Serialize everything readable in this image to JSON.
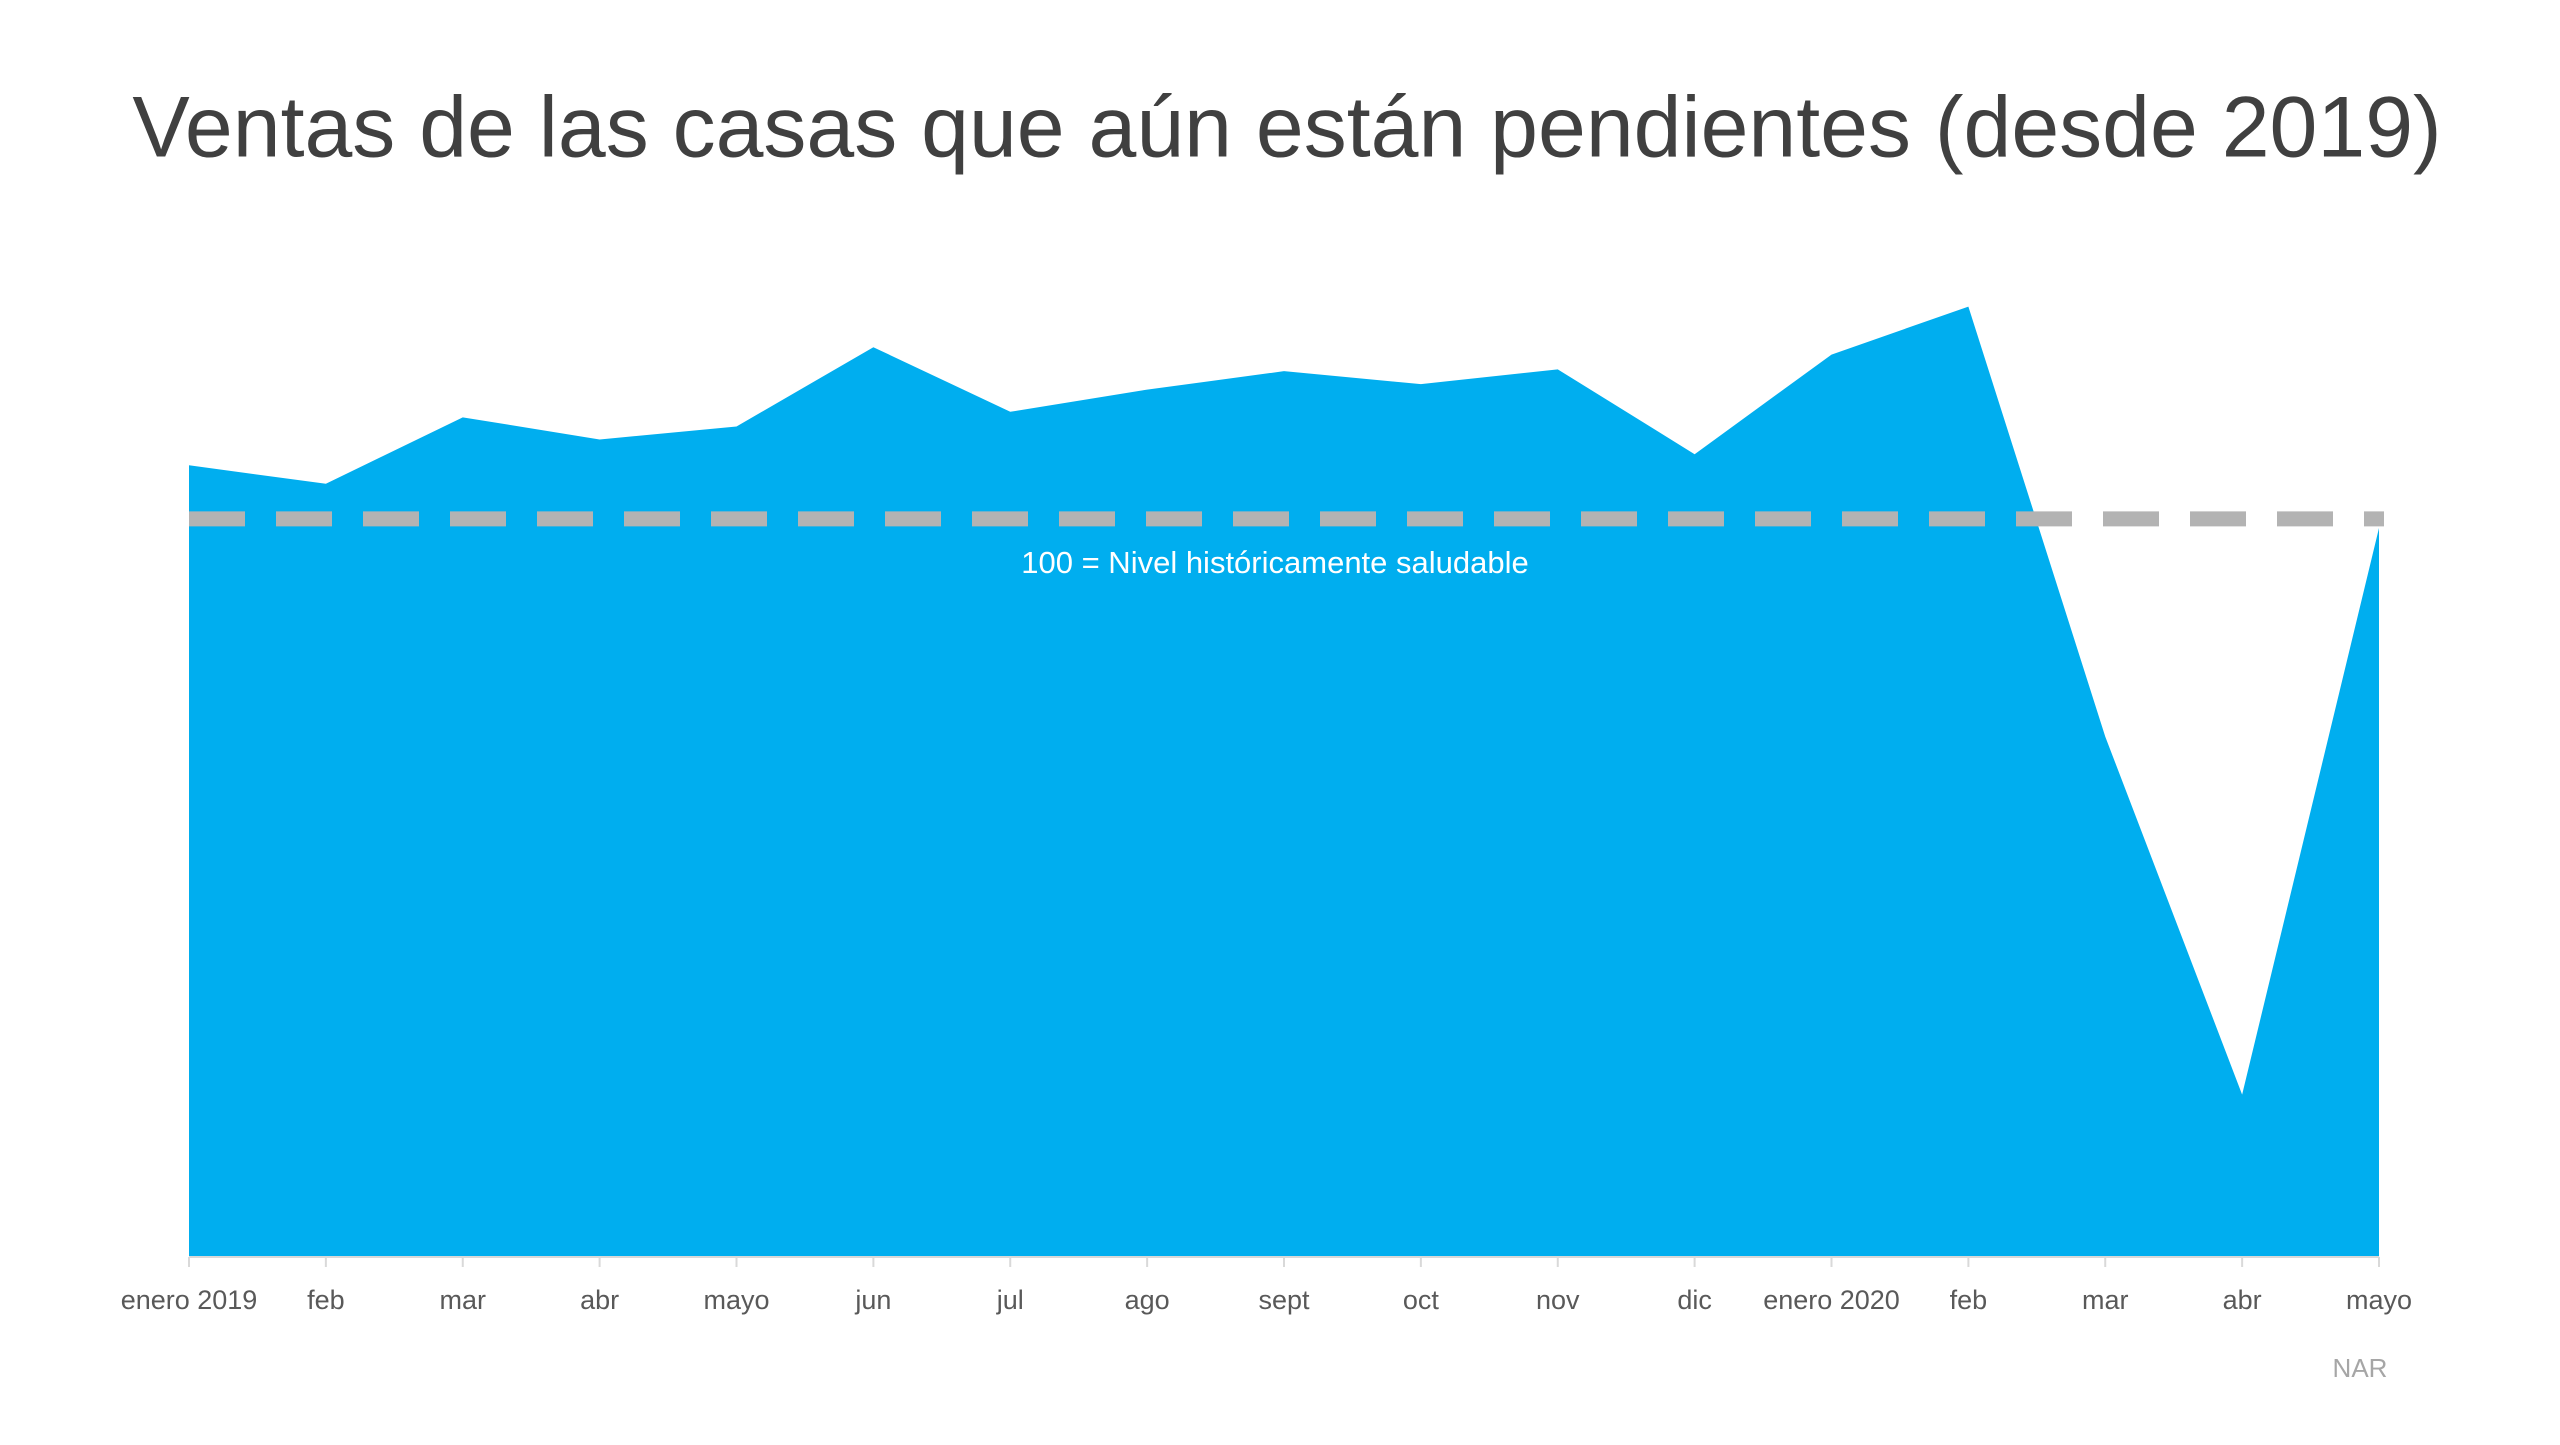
{
  "chart_data": {
    "type": "area",
    "title": "Ventas de las casas que aún están pendientes (desde 2019)",
    "categories": [
      "enero 2019",
      "feb",
      "mar",
      "abr",
      "mayo",
      "jun",
      "jul",
      "ago",
      "sept",
      "oct",
      "nov",
      "dic",
      "enero 2020",
      "feb",
      "mar",
      "abr",
      "mayo"
    ],
    "values": [
      102.9,
      101.9,
      105.5,
      104.3,
      105.0,
      109.3,
      105.8,
      107.0,
      108.0,
      107.3,
      108.1,
      103.5,
      108.9,
      111.5,
      88.2,
      68.8,
      99.5
    ],
    "color": "#00aeef",
    "ylim": [
      60,
      115
    ],
    "reference_line": {
      "value": 100,
      "label": "100 = Nivel históricamente saludable",
      "color": "#b3b3b3"
    },
    "source": "NAR"
  }
}
